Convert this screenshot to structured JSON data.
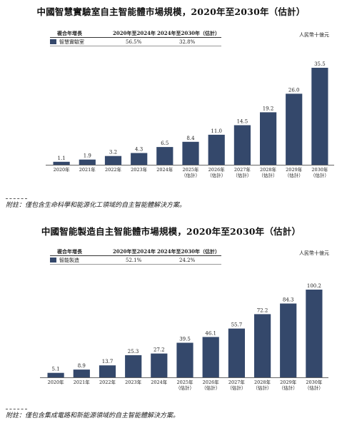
{
  "chart_data": [
    {
      "type": "bar",
      "title": "中國智慧實驗室自主智能體市場規模，2020年至2030年（估計）",
      "unit": "人民幣十億元",
      "table": {
        "headers": [
          "複合年增長",
          "2020年至2024年",
          "2024年至2030年（估計）"
        ],
        "row": {
          "label": "智慧實驗室",
          "cagr_2020_2024": "56.5%",
          "cagr_2024_2030": "32.8%"
        }
      },
      "categories": [
        [
          "2020年"
        ],
        [
          "2021年"
        ],
        [
          "2022年"
        ],
        [
          "2023年"
        ],
        [
          "2024年"
        ],
        [
          "2025年",
          "（估計）"
        ],
        [
          "2026年",
          "（估計）"
        ],
        [
          "2027年",
          "（估計）"
        ],
        [
          "2028年",
          "（估計）"
        ],
        [
          "2029年",
          "（估計）"
        ],
        [
          "2030年",
          "（估計）"
        ]
      ],
      "values": [
        1.1,
        1.9,
        3.2,
        4.3,
        6.5,
        8.4,
        11.0,
        14.5,
        19.2,
        26.0,
        35.5
      ],
      "value_labels": [
        "1.1",
        "1.9",
        "3.2",
        "4.3",
        "6.5",
        "8.4",
        "11.0",
        "14.5",
        "19.2",
        "26.0",
        "35.5"
      ],
      "ylim": [
        0,
        35.5
      ],
      "bar_color": "#34486b",
      "grid": false,
      "footnote": "附註：僅包含生命科學和能源化工領域的自主智能體解決方案。"
    },
    {
      "type": "bar",
      "title": "中國智能製造自主智能體市場規模，2020年至2030年（估計）",
      "unit": "人民幣十億元",
      "table": {
        "headers": [
          "複合年增長",
          "2020年至2024年",
          "2024年至2030年（估計）"
        ],
        "row": {
          "label": "智能製造",
          "cagr_2020_2024": "52.1%",
          "cagr_2024_2030": "24.2%"
        }
      },
      "categories": [
        [
          "2020年"
        ],
        [
          "2021年"
        ],
        [
          "2022年"
        ],
        [
          "2023年"
        ],
        [
          "2024年"
        ],
        [
          "2025年",
          "（估計）"
        ],
        [
          "2026年",
          "（估計）"
        ],
        [
          "2027年",
          "（估計）"
        ],
        [
          "2028年",
          "（估計）"
        ],
        [
          "2029年",
          "（估計）"
        ],
        [
          "2030年",
          "（估計）"
        ]
      ],
      "values": [
        5.1,
        8.9,
        13.7,
        25.3,
        27.2,
        39.5,
        46.1,
        55.7,
        72.2,
        84.3,
        100.2
      ],
      "value_labels": [
        "5.1",
        "8.9",
        "13.7",
        "25.3",
        "27.2",
        "39.5",
        "46.1",
        "55.7",
        "72.2",
        "84.3",
        "100.2"
      ],
      "ylim": [
        0,
        100.2
      ],
      "bar_color": "#34486b",
      "grid": false,
      "footnote": "附註：僅包含集成電路和新能源領域的自主智能體解決方案。"
    }
  ]
}
